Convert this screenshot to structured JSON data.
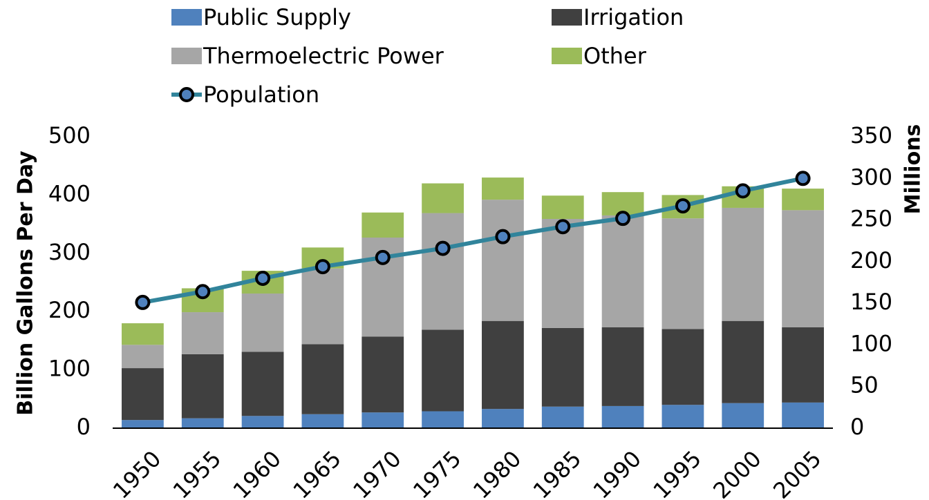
{
  "chart_data": {
    "type": "bar",
    "stacked": true,
    "categories": [
      "1950",
      "1955",
      "1960",
      "1965",
      "1970",
      "1975",
      "1980",
      "1985",
      "1990",
      "1995",
      "2000",
      "2005"
    ],
    "y_label": "Billion Gallons Per Day",
    "y2_label": "Millions",
    "ylim": [
      0,
      500
    ],
    "yticks": [
      0,
      100,
      200,
      300,
      400,
      500
    ],
    "y2lim": [
      0,
      350
    ],
    "y2ticks": [
      0,
      50,
      100,
      150,
      200,
      250,
      300,
      350
    ],
    "series": [
      {
        "name": "Public Supply",
        "color": "#4f81bd",
        "values": [
          14,
          17,
          21,
          24,
          27,
          29,
          33,
          37,
          38,
          40,
          43,
          44
        ]
      },
      {
        "name": "Irrigation",
        "color": "#404040",
        "values": [
          89,
          110,
          110,
          120,
          130,
          140,
          151,
          135,
          135,
          130,
          141,
          129
        ]
      },
      {
        "name": "Thermoelectric Power",
        "color": "#a6a6a6",
        "values": [
          40,
          72,
          100,
          130,
          170,
          200,
          208,
          187,
          192,
          190,
          194,
          201
        ]
      },
      {
        "name": "Other",
        "color": "#9bbb59",
        "values": [
          37,
          41,
          39,
          36,
          43,
          51,
          38,
          40,
          40,
          40,
          37,
          37
        ]
      },
      {
        "name": "Population",
        "type": "line",
        "axis": "y2",
        "color": "#31849b",
        "marker_color": "#4f81bd",
        "values": [
          151,
          164,
          180,
          194,
          205,
          216,
          230,
          242,
          252,
          267,
          285,
          300
        ]
      }
    ]
  }
}
